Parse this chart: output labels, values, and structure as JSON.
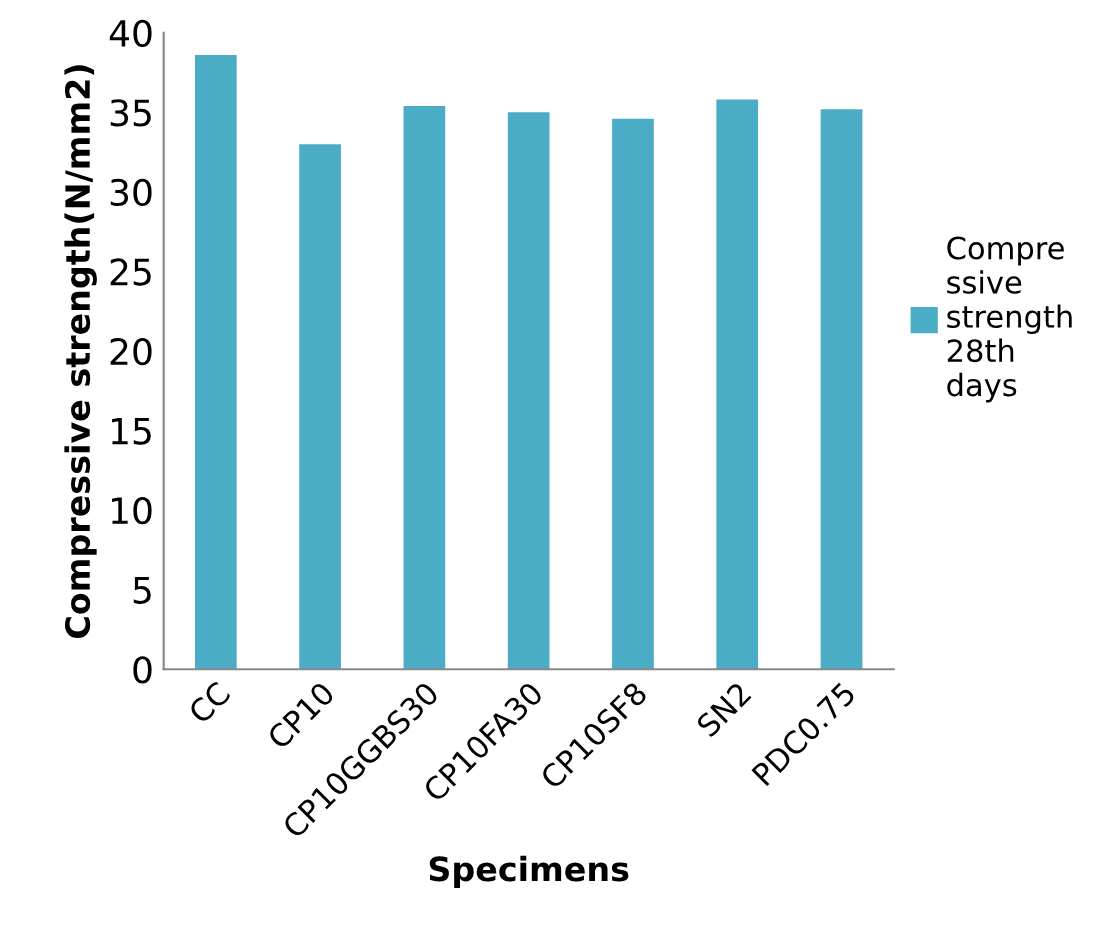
{
  "chart_data": {
    "type": "bar",
    "xlabel": "Specimens",
    "ylabel": "Compressive strength(N/mm2)",
    "categories": [
      "CC",
      "CP10",
      "CP10GGBS30",
      "CP10FA30",
      "CP10SF8",
      "SN2",
      "PDC0.75"
    ],
    "series": [
      {
        "name": "Compre\nssive\nstrength\n28th\ndays",
        "color": "#4bacc6",
        "values": [
          38.6,
          33.0,
          35.4,
          35.0,
          34.6,
          35.8,
          35.2
        ]
      }
    ],
    "ylim": [
      0,
      40
    ],
    "yticks": [
      0,
      5,
      10,
      15,
      20,
      25,
      30,
      35,
      40
    ],
    "grid": false,
    "legend": "right"
  }
}
